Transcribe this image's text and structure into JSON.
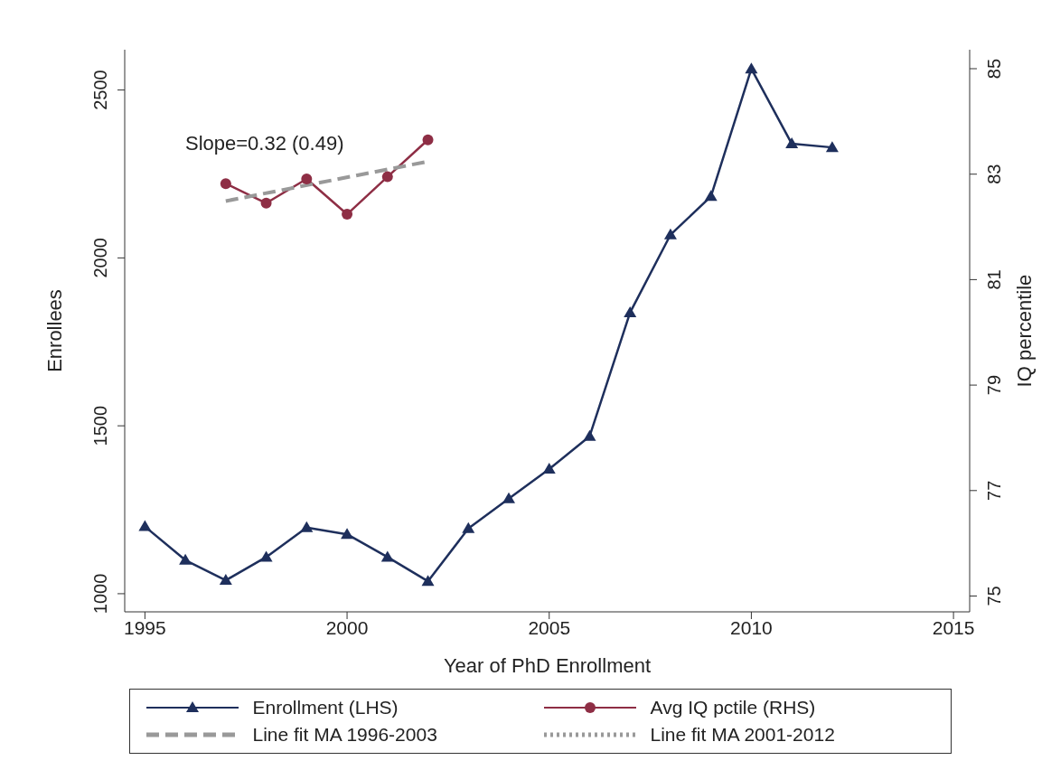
{
  "chart_data": {
    "type": "line",
    "xlabel": "Year of PhD Enrollment",
    "ylabel": "Enrollees",
    "y2label": "IQ percentile",
    "xlim": [
      1994.5,
      2015.4
    ],
    "xticks": [
      1995,
      2000,
      2005,
      2010,
      2015
    ],
    "ylim": [
      946,
      2620
    ],
    "yticks": [
      1000,
      1500,
      2000,
      2500
    ],
    "y2lim": [
      74.7,
      85.36
    ],
    "y2ticks": [
      75,
      77,
      79,
      81,
      83,
      85
    ],
    "grid": false,
    "legend": "bottom",
    "annotations": [
      "Slope=0.32 (0.49)"
    ],
    "series": [
      {
        "name": "Enrollment (LHS)",
        "color": "#1e2f5c",
        "marker": "triangle",
        "line_style": "solid",
        "x": [
          1995,
          1996,
          1997,
          1998,
          1999,
          2000,
          2001,
          2002,
          2003,
          2004,
          2005,
          2006,
          2007,
          2008,
          2009,
          2010,
          2011,
          2012
        ],
        "values": [
          1200,
          1100,
          1040,
          1109,
          1197,
          1177,
          1109,
          1037,
          1194,
          1283,
          1371,
          1469,
          1837,
          2069,
          2183,
          2563,
          2340,
          2329
        ]
      },
      {
        "name": "Avg IQ pctile (RHS)",
        "color": "#8e2e45",
        "marker": "circle",
        "line_style": "solid",
        "axis": "y2",
        "x": [
          1997,
          1998,
          1999,
          2000,
          2001,
          2002
        ],
        "values": [
          82.82,
          82.45,
          82.91,
          82.24,
          82.95,
          83.65
        ]
      },
      {
        "name": "Line fit MA 1996-2003",
        "color": "#999999",
        "marker": "none",
        "line_style": "dashed",
        "axis": "y2",
        "x": [
          1997,
          2002
        ],
        "values": [
          82.49,
          83.24
        ]
      },
      {
        "name": "Line fit MA 2001-2012",
        "color": "#999999",
        "marker": "none",
        "line_style": "dotted",
        "axis": "y2"
      }
    ]
  }
}
